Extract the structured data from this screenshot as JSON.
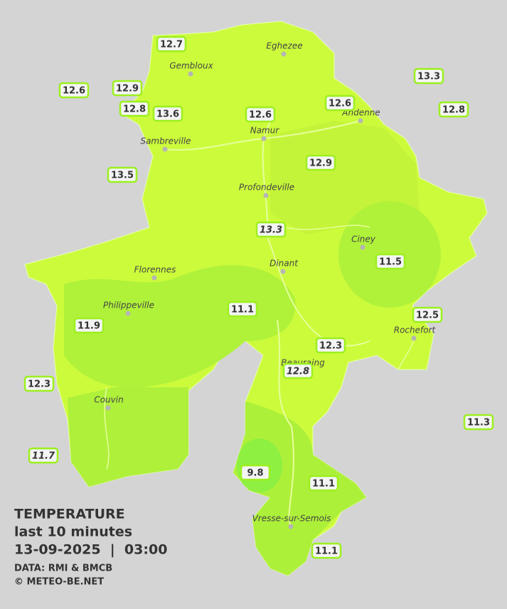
{
  "map": {
    "title": "TEMPERATURE",
    "subtitle": "last 10 minutes",
    "datetime": "13-09-2025  |  03:00",
    "source": "DATA: RMI & BMCB",
    "credit": "© METEO-BE.NET",
    "cities": [
      "Eghezee",
      "Gembloux",
      "Andenne",
      "Namur",
      "Sambreville",
      "Profondeville",
      "Ciney",
      "Dinant",
      "Florennes",
      "Philippeville",
      "Rochefort",
      "Beauraing",
      "Couvin",
      "Vresse-sur-Semois"
    ],
    "stations": [
      {
        "label": "12.7"
      },
      {
        "label": "12.6"
      },
      {
        "label": "12.9"
      },
      {
        "label": "12.8"
      },
      {
        "label": "13.6"
      },
      {
        "label": "12.6"
      },
      {
        "label": "12.6"
      },
      {
        "label": "13.3"
      },
      {
        "label": "12.8"
      },
      {
        "label": "13.5"
      },
      {
        "label": "12.9"
      },
      {
        "label": "13.3",
        "italic": true
      },
      {
        "label": "11.5"
      },
      {
        "label": "11.1"
      },
      {
        "label": "11.9"
      },
      {
        "label": "12.5"
      },
      {
        "label": "12.3"
      },
      {
        "label": "12.8",
        "italic": true
      },
      {
        "label": "12.3"
      },
      {
        "label": "11.3"
      },
      {
        "label": "11.7",
        "italic": true
      },
      {
        "label": "9.8"
      },
      {
        "label": "11.1"
      },
      {
        "label": "11.1"
      }
    ]
  }
}
